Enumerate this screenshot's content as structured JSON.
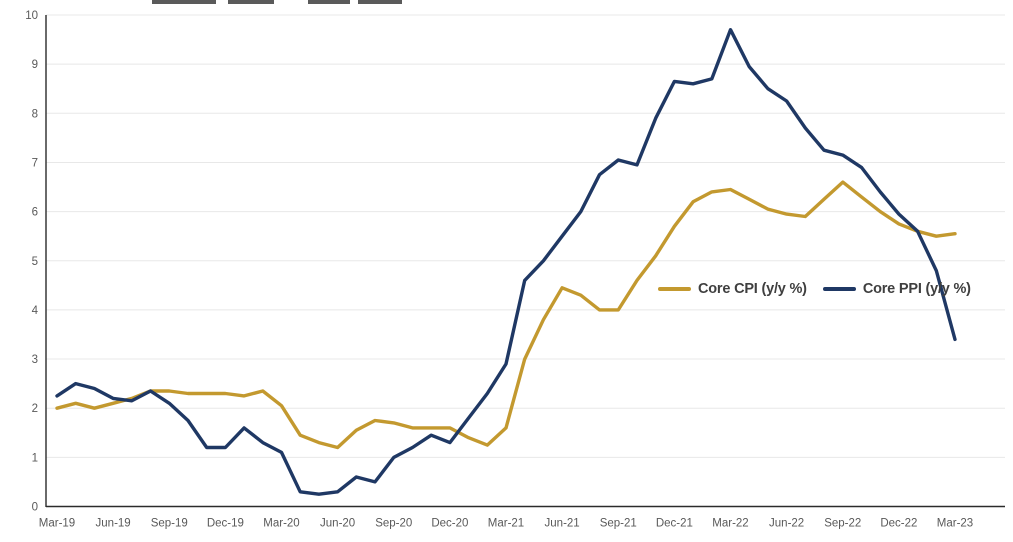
{
  "chart_data": {
    "type": "line",
    "x": [
      "Mar-19",
      "Apr-19",
      "May-19",
      "Jun-19",
      "Jul-19",
      "Aug-19",
      "Sep-19",
      "Oct-19",
      "Nov-19",
      "Dec-19",
      "Jan-20",
      "Feb-20",
      "Mar-20",
      "Apr-20",
      "May-20",
      "Jun-20",
      "Jul-20",
      "Aug-20",
      "Sep-20",
      "Oct-20",
      "Nov-20",
      "Dec-20",
      "Jan-21",
      "Feb-21",
      "Mar-21",
      "Apr-21",
      "May-21",
      "Jun-21",
      "Jul-21",
      "Aug-21",
      "Sep-21",
      "Oct-21",
      "Nov-21",
      "Dec-21",
      "Jan-22",
      "Feb-22",
      "Mar-22",
      "Apr-22",
      "May-22",
      "Jun-22",
      "Jul-22",
      "Aug-22",
      "Sep-22",
      "Oct-22",
      "Nov-22",
      "Dec-22",
      "Jan-23",
      "Feb-23",
      "Mar-23"
    ],
    "x_tick_labels": [
      "Mar-19",
      "Jun-19",
      "Sep-19",
      "Dec-19",
      "Mar-20",
      "Jun-20",
      "Sep-20",
      "Dec-20",
      "Mar-21",
      "Jun-21",
      "Sep-21",
      "Dec-21",
      "Mar-22",
      "Jun-22",
      "Sep-22",
      "Dec-22",
      "Mar-23"
    ],
    "series": [
      {
        "name": "Core CPI (y/y %)",
        "color": "#C3992F",
        "values": [
          2.0,
          2.1,
          2.0,
          2.1,
          2.2,
          2.35,
          2.35,
          2.3,
          2.3,
          2.3,
          2.25,
          2.35,
          2.05,
          1.45,
          1.3,
          1.2,
          1.55,
          1.75,
          1.7,
          1.6,
          1.6,
          1.6,
          1.4,
          1.25,
          1.6,
          3.0,
          3.8,
          4.45,
          4.3,
          4.0,
          4.0,
          4.6,
          5.1,
          5.7,
          6.2,
          6.4,
          6.45,
          6.25,
          6.05,
          5.95,
          5.9,
          6.25,
          6.6,
          6.3,
          6.0,
          5.75,
          5.6,
          5.5,
          5.55
        ]
      },
      {
        "name": "Core PPI (y/y %)",
        "color": "#1F3864",
        "values": [
          2.25,
          2.5,
          2.4,
          2.2,
          2.15,
          2.35,
          2.1,
          1.75,
          1.2,
          1.2,
          1.6,
          1.3,
          1.1,
          0.3,
          0.25,
          0.3,
          0.6,
          0.5,
          1.0,
          1.2,
          1.45,
          1.3,
          1.8,
          2.3,
          2.9,
          4.6,
          5.0,
          5.5,
          6.0,
          6.75,
          7.05,
          6.95,
          7.9,
          8.65,
          8.6,
          8.7,
          9.7,
          8.95,
          8.5,
          8.25,
          7.7,
          7.25,
          7.15,
          6.9,
          6.4,
          5.95,
          5.6,
          4.8,
          3.4
        ]
      }
    ],
    "ylim": [
      0,
      10
    ],
    "yticks": [
      0,
      1,
      2,
      3,
      4,
      5,
      6,
      7,
      8,
      9,
      10
    ],
    "grid": true,
    "legend_position": "inside-middle-right",
    "axis_label_color": "#595959",
    "gridline_color": "#e8e8e8",
    "axis_line_color": "#2b2b2b"
  }
}
